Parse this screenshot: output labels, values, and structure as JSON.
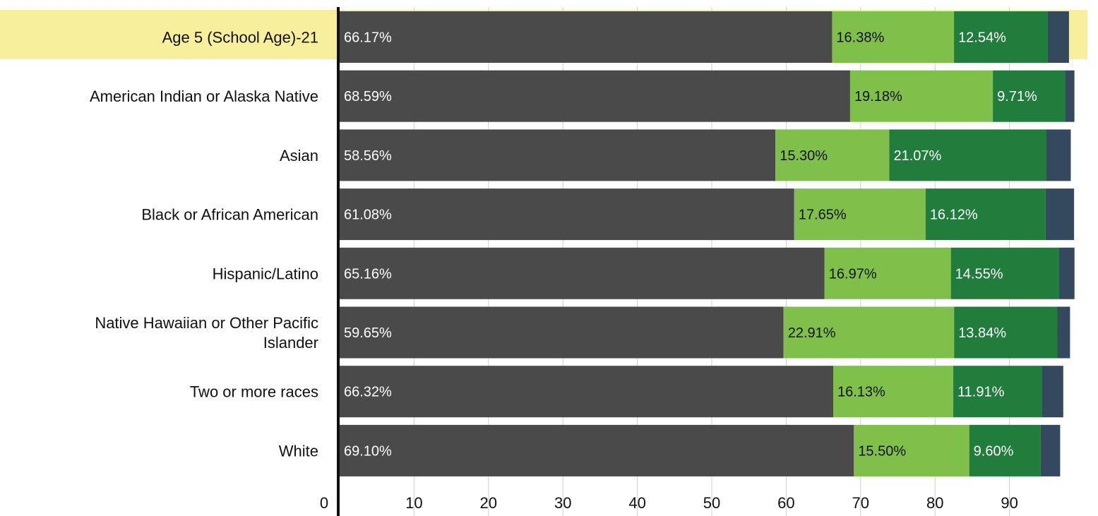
{
  "chart_data": {
    "type": "bar",
    "orientation": "horizontal",
    "stacked": true,
    "highlight_category": "Age 5 (School Age)-21",
    "categories": [
      "Age 5 (School Age)-21",
      "American Indian or Alaska Native",
      "Asian",
      "Black or African American",
      "Hispanic/Latino",
      "Native Hawaiian or Other Pacific Islander",
      "Two or more races",
      "White"
    ],
    "series": [
      {
        "color": "#4a4a4a",
        "label_color": "#ffffff",
        "values": [
          66.17,
          68.59,
          58.56,
          61.08,
          65.16,
          59.65,
          66.32,
          69.1
        ],
        "labels": [
          "66.17%",
          "68.59%",
          "58.56%",
          "61.08%",
          "65.16%",
          "59.65%",
          "66.32%",
          "69.10%"
        ]
      },
      {
        "color": "#7ec04a",
        "label_color": "#111111",
        "values": [
          16.38,
          19.18,
          15.3,
          17.65,
          16.97,
          22.91,
          16.13,
          15.5
        ],
        "labels": [
          "16.38%",
          "19.18%",
          "15.30%",
          "17.65%",
          "16.97%",
          "22.91%",
          "16.13%",
          "15.50%"
        ]
      },
      {
        "color": "#217d3b",
        "label_color": "#ffffff",
        "values": [
          12.54,
          9.71,
          21.07,
          16.12,
          14.55,
          13.84,
          11.91,
          9.6
        ],
        "labels": [
          "12.54%",
          "9.71%",
          "21.07%",
          "16.12%",
          "14.55%",
          "13.84%",
          "11.91%",
          "9.60%"
        ]
      },
      {
        "color": "#34495e",
        "label_color": "#ffffff",
        "values": [
          2.91,
          1.25,
          3.31,
          3.83,
          2.06,
          1.74,
          2.87,
          2.61
        ],
        "labels": [
          "",
          "",
          "",
          "",
          "",
          "",
          "",
          ""
        ]
      }
    ],
    "x_ticks": [
      "0",
      "10",
      "20",
      "30",
      "40",
      "50",
      "60",
      "70",
      "80",
      "90"
    ],
    "xlim": [
      0,
      100
    ],
    "grid": true
  }
}
